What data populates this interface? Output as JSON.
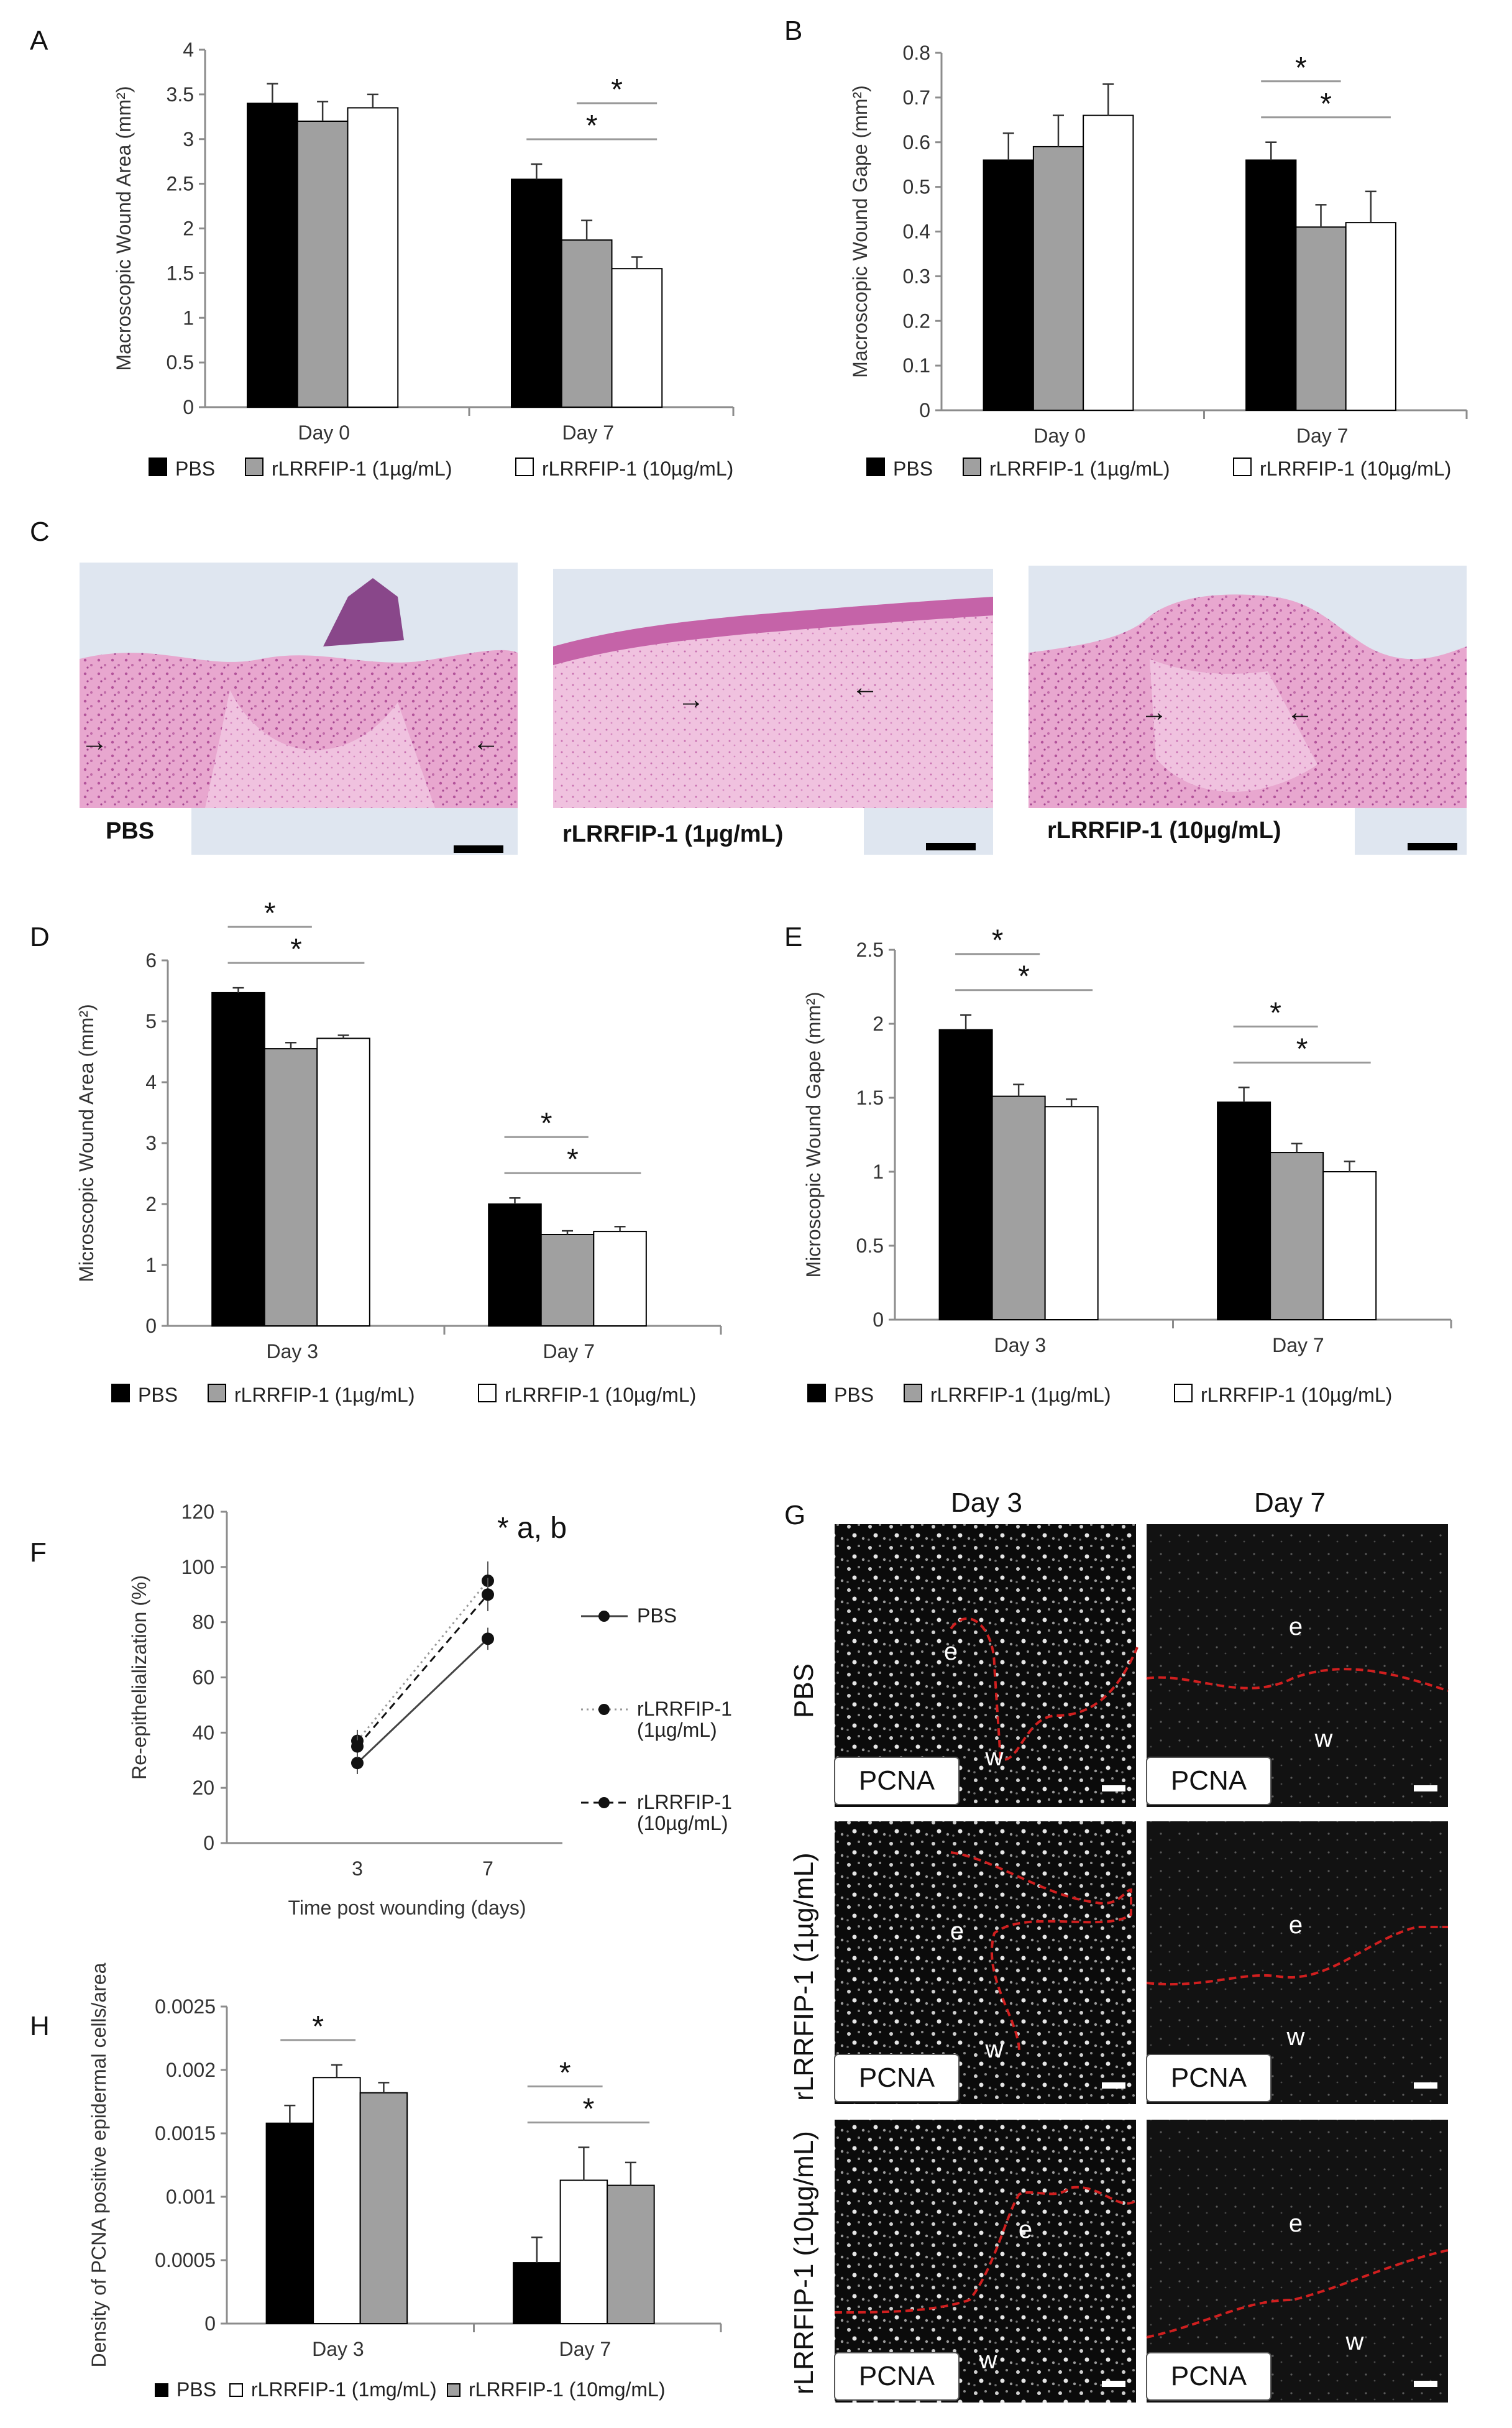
{
  "panels": {
    "A": "A",
    "B": "B",
    "C": "C",
    "D": "D",
    "E": "E",
    "F": "F",
    "G": "G",
    "H": "H"
  },
  "legend_bar": [
    "PBS",
    "rLRRFIP-1 (1µg/mL)",
    "rLRRFIP-1 (10µg/mL)"
  ],
  "legend_h": [
    "PBS",
    "rLRRFIP-1 (1mg/mL)",
    "rLRRFIP-1 (10mg/mL)"
  ],
  "histology": {
    "labels": [
      "PBS",
      "rLRRFIP-1 (1µg/mL)",
      "rLRRFIP-1 (10µg/mL)"
    ],
    "arrow_glyph": "→ ←"
  },
  "pcna": {
    "columns": [
      "Day 3",
      "Day 7"
    ],
    "rows": [
      "PBS",
      "rLRRFIP-1 (1µg/mL)",
      "rLRRFIP-1 (10µg/mL)"
    ],
    "stain": "PCNA",
    "epidermis": "e",
    "wound": "w"
  },
  "colors": {
    "pbs": "#000000",
    "low": "#a0a0a0",
    "high": "#ffffff",
    "boundary": "#d01f1f"
  },
  "chart_data": [
    {
      "id": "A",
      "type": "bar",
      "ylabel": "Macroscopic Wound Area (mm²)",
      "categories": [
        "Day 0",
        "Day 7"
      ],
      "ylim": [
        0,
        4
      ],
      "ticks": [
        0,
        0.5,
        1,
        1.5,
        2,
        2.5,
        3,
        3.5,
        4
      ],
      "series": [
        {
          "name": "PBS",
          "values": [
            3.4,
            2.55
          ],
          "err": [
            0.22,
            0.17
          ]
        },
        {
          "name": "rLRRFIP-1 (1µg/mL)",
          "values": [
            3.2,
            1.87
          ],
          "err": [
            0.22,
            0.22
          ]
        },
        {
          "name": "rLRRFIP-1 (10µg/mL)",
          "values": [
            3.35,
            1.55
          ],
          "err": [
            0.15,
            0.13
          ]
        }
      ],
      "sig": [
        {
          "cat": 1,
          "from": 1,
          "to": 2,
          "label": "*"
        },
        {
          "cat": 1,
          "from": 0,
          "to": 2,
          "label": "*"
        }
      ]
    },
    {
      "id": "B",
      "type": "bar",
      "ylabel": "Macroscopic Wound Gape (mm²)",
      "categories": [
        "Day 0",
        "Day 7"
      ],
      "ylim": [
        0,
        0.8
      ],
      "ticks": [
        0,
        0.1,
        0.2,
        0.3,
        0.4,
        0.5,
        0.6,
        0.7,
        0.8
      ],
      "series": [
        {
          "name": "PBS",
          "values": [
            0.56,
            0.56
          ],
          "err": [
            0.06,
            0.04
          ]
        },
        {
          "name": "rLRRFIP-1 (1µg/mL)",
          "values": [
            0.59,
            0.41
          ],
          "err": [
            0.07,
            0.05
          ]
        },
        {
          "name": "rLRRFIP-1 (10µg/mL)",
          "values": [
            0.66,
            0.42
          ],
          "err": [
            0.07,
            0.07
          ]
        }
      ],
      "sig": [
        {
          "cat": 1,
          "from": 0,
          "to": 1,
          "label": "*"
        },
        {
          "cat": 1,
          "from": 0,
          "to": 2,
          "label": "*"
        }
      ]
    },
    {
      "id": "D",
      "type": "bar",
      "ylabel": "Microscopic Wound Area (mm²)",
      "categories": [
        "Day 3",
        "Day 7"
      ],
      "ylim": [
        0,
        6
      ],
      "ticks": [
        0,
        1,
        2,
        3,
        4,
        5,
        6
      ],
      "series": [
        {
          "name": "PBS",
          "values": [
            5.47,
            2.0
          ],
          "err": [
            0.08,
            0.1
          ]
        },
        {
          "name": "rLRRFIP-1 (1µg/mL)",
          "values": [
            4.55,
            1.5
          ],
          "err": [
            0.1,
            0.06
          ]
        },
        {
          "name": "rLRRFIP-1 (10µg/mL)",
          "values": [
            4.72,
            1.55
          ],
          "err": [
            0.05,
            0.08
          ]
        }
      ],
      "sig": [
        {
          "cat": 0,
          "from": 0,
          "to": 1,
          "label": "*"
        },
        {
          "cat": 0,
          "from": 0,
          "to": 2,
          "label": "*"
        },
        {
          "cat": 1,
          "from": 0,
          "to": 1,
          "label": "*"
        },
        {
          "cat": 1,
          "from": 0,
          "to": 2,
          "label": "*"
        }
      ]
    },
    {
      "id": "E",
      "type": "bar",
      "ylabel": "Microscopic Wound Gape (mm²)",
      "categories": [
        "Day 3",
        "Day 7"
      ],
      "ylim": [
        0,
        2.5
      ],
      "ticks": [
        0,
        0.5,
        1,
        1.5,
        2,
        2.5
      ],
      "series": [
        {
          "name": "PBS",
          "values": [
            1.96,
            1.47
          ],
          "err": [
            0.1,
            0.1
          ]
        },
        {
          "name": "rLRRFIP-1 (1µg/mL)",
          "values": [
            1.51,
            1.13
          ],
          "err": [
            0.08,
            0.06
          ]
        },
        {
          "name": "rLRRFIP-1 (10µg/mL)",
          "values": [
            1.44,
            1.0
          ],
          "err": [
            0.05,
            0.07
          ]
        }
      ],
      "sig": [
        {
          "cat": 0,
          "from": 0,
          "to": 1,
          "label": "*"
        },
        {
          "cat": 0,
          "from": 0,
          "to": 2,
          "label": "*"
        },
        {
          "cat": 1,
          "from": 0,
          "to": 1,
          "label": "*"
        },
        {
          "cat": 1,
          "from": 0,
          "to": 2,
          "label": "*"
        }
      ]
    },
    {
      "id": "F",
      "type": "line",
      "ylabel": "Re-epithelialization (%)",
      "xlabel": "Time post wounding (days)",
      "x": [
        3,
        7
      ],
      "ylim": [
        0,
        120
      ],
      "ticks": [
        0,
        20,
        40,
        60,
        80,
        100,
        120
      ],
      "series": [
        {
          "name": "PBS",
          "values": [
            29,
            74
          ],
          "err": [
            4,
            4
          ],
          "dash": "solid"
        },
        {
          "name": "rLRRFIP-1 (1µg/mL)",
          "values": [
            37,
            95
          ],
          "err": [
            4,
            7
          ],
          "dash": "dotted"
        },
        {
          "name": "rLRRFIP-1 (10µg/mL)",
          "values": [
            35,
            90
          ],
          "err": [
            4,
            6
          ],
          "dash": "dashed"
        }
      ],
      "annotation": "* a, b"
    },
    {
      "id": "H",
      "type": "bar",
      "ylabel": "Density of PCNA positive epidermal cells/area",
      "categories": [
        "Day 3",
        "Day 7"
      ],
      "ylim": [
        0,
        0.0025
      ],
      "ticks": [
        "0",
        "0.0005",
        "0.001",
        "0.0015",
        "0.002",
        "0.0025"
      ],
      "series": [
        {
          "name": "PBS",
          "values": [
            0.00158,
            0.00048
          ],
          "err": [
            0.00014,
            0.0002
          ]
        },
        {
          "name": "rLRRFIP-1 (1mg/mL)",
          "values": [
            0.00194,
            0.00113
          ],
          "err": [
            0.0001,
            0.00026
          ]
        },
        {
          "name": "rLRRFIP-1 (10mg/mL)",
          "values": [
            0.00182,
            0.00109
          ],
          "err": [
            8e-05,
            0.00018
          ]
        }
      ],
      "sig": [
        {
          "cat": 0,
          "from": 0,
          "to": 1,
          "label": "*"
        },
        {
          "cat": 1,
          "from": 0,
          "to": 1,
          "label": "*"
        },
        {
          "cat": 1,
          "from": 0,
          "to": 2,
          "label": "*"
        }
      ]
    }
  ]
}
